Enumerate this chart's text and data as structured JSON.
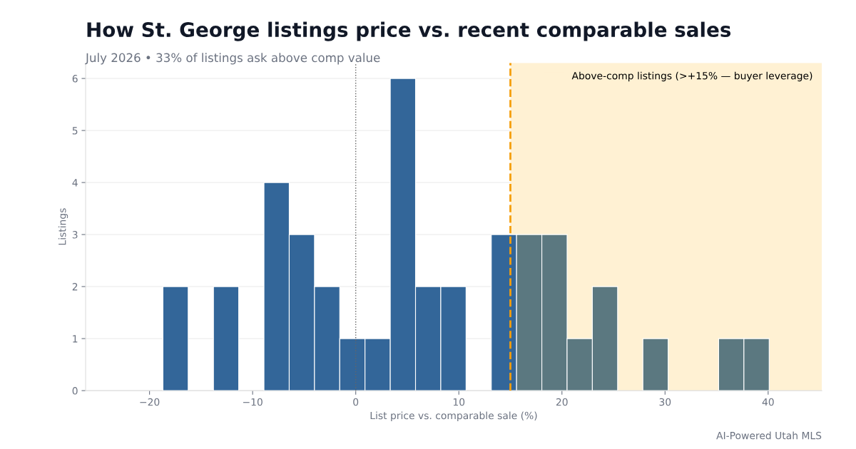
{
  "chart_data": {
    "type": "histogram",
    "title": "How St. George listings price vs. recent comparable sales",
    "subtitle": "July 2026 • 33% of listings ask above comp value",
    "xlabel": "List price vs. comparable sale (%)",
    "ylabel": "Listings",
    "bins": [
      -18.7,
      -16.25,
      -13.8,
      -11.35,
      -8.9,
      -6.45,
      -4.0,
      -1.55,
      0.9,
      3.35,
      5.8,
      8.25,
      10.7,
      13.15,
      15.6,
      18.05,
      20.5,
      22.95,
      25.4,
      27.85,
      30.3,
      32.75,
      35.2,
      37.65,
      40.1
    ],
    "values": [
      2,
      0,
      2,
      0,
      4,
      3,
      2,
      1,
      1,
      6,
      2,
      2,
      0,
      3,
      3,
      3,
      1,
      2,
      0,
      1,
      0,
      0,
      1,
      1
    ],
    "colors": [
      "#336699",
      "#336699",
      "#336699",
      "#336699",
      "#336699",
      "#336699",
      "#336699",
      "#336699",
      "#336699",
      "#336699",
      "#336699",
      "#336699",
      "#336699",
      "#336699",
      "#5b7880",
      "#5b7880",
      "#5b7880",
      "#5b7880",
      "#5b7880",
      "#5b7880",
      "#5b7880",
      "#5b7880",
      "#5b7880",
      "#5b7880"
    ],
    "xlim": [
      -26.2,
      45.2
    ],
    "ylim": [
      0,
      6.3
    ],
    "xticks": [
      {
        "value": -20,
        "label": "−20"
      },
      {
        "value": -10,
        "label": "−10"
      },
      0,
      10,
      20,
      30,
      40
    ],
    "yticks": [
      0,
      1,
      2,
      3,
      4,
      5,
      6
    ],
    "ref_lines": [
      {
        "axis": "x",
        "value": 0,
        "color": "#666666",
        "line_style": "dotted"
      },
      {
        "axis": "x",
        "value": 15,
        "color": "#f59e0b",
        "line_style": "dashed"
      }
    ],
    "bands": [
      {
        "axis": "x",
        "from": 15,
        "to": 45.2,
        "label": "Above-comp listings (>+15% — buyer leverage)",
        "color": "#fff1d3"
      }
    ],
    "grid": "y",
    "legend": "top right",
    "annotations": [
      "AI-Powered Utah MLS"
    ]
  }
}
